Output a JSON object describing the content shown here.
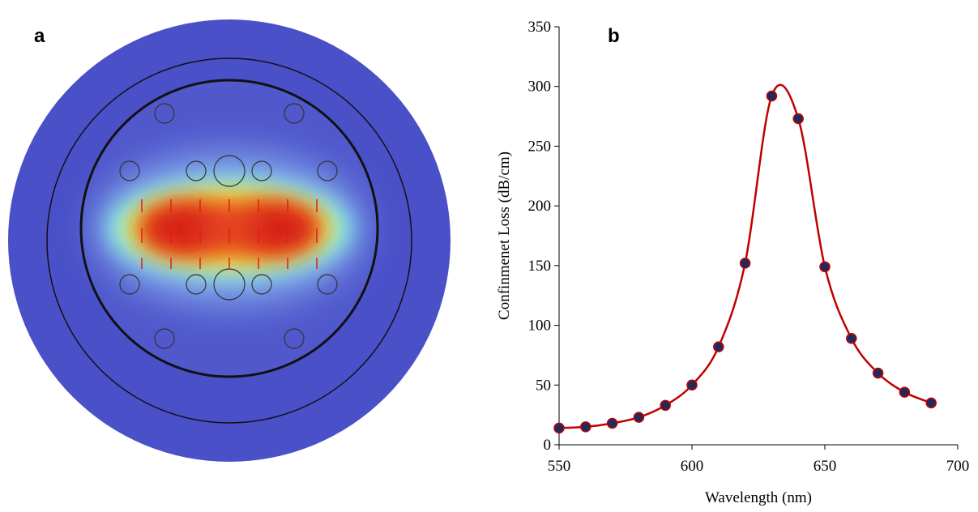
{
  "figure_a": {
    "label": "a"
  },
  "chart_data": {
    "type": "line",
    "label": "b",
    "xlabel": "Wavelength (nm)",
    "ylabel": "Confinmenet Loss (dB/cm)",
    "x": [
      550,
      560,
      570,
      580,
      590,
      600,
      610,
      620,
      630,
      640,
      650,
      660,
      670,
      680,
      690
    ],
    "values": [
      14,
      15,
      18,
      23,
      33,
      50,
      82,
      152,
      292,
      273,
      149,
      89,
      60,
      44,
      35
    ],
    "color": "#c00000",
    "marker_color": "#1f2a5c",
    "smooth": true,
    "xlim": [
      550,
      700
    ],
    "xticks": [
      550,
      600,
      650,
      700
    ],
    "ylim": [
      0,
      350
    ],
    "yticks": [
      0,
      50,
      100,
      150,
      200,
      250,
      300,
      350
    ]
  }
}
